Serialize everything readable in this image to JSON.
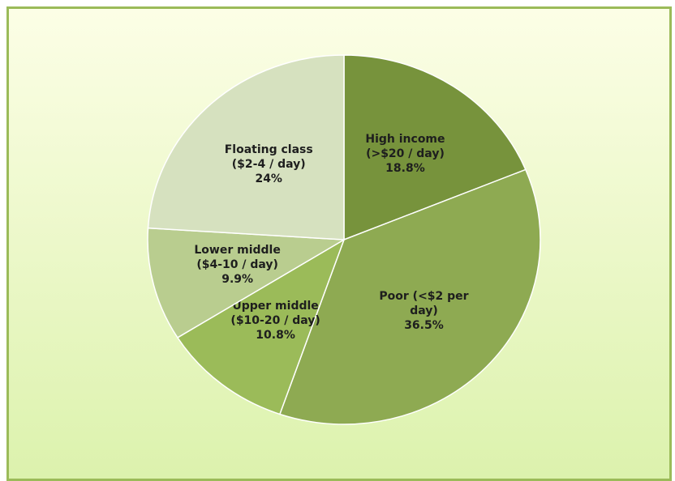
{
  "chart_data": {
    "type": "pie",
    "categories": [
      "High income (>$20 / day)",
      "Poor (<$2 per day)",
      "Upper middle ($10-20 / day)",
      "Lower middle ($4-10 / day)",
      "Floating class ($2-4 / day)"
    ],
    "values": [
      18.8,
      36.5,
      10.8,
      9.9,
      24
    ],
    "value_labels": [
      "18.8%",
      "36.5%",
      "10.8%",
      "9.9%",
      "24%"
    ],
    "colors": [
      "#77933c",
      "#8eaa52",
      "#9bbb59",
      "#b9cd8f",
      "#d6e1bf"
    ]
  }
}
